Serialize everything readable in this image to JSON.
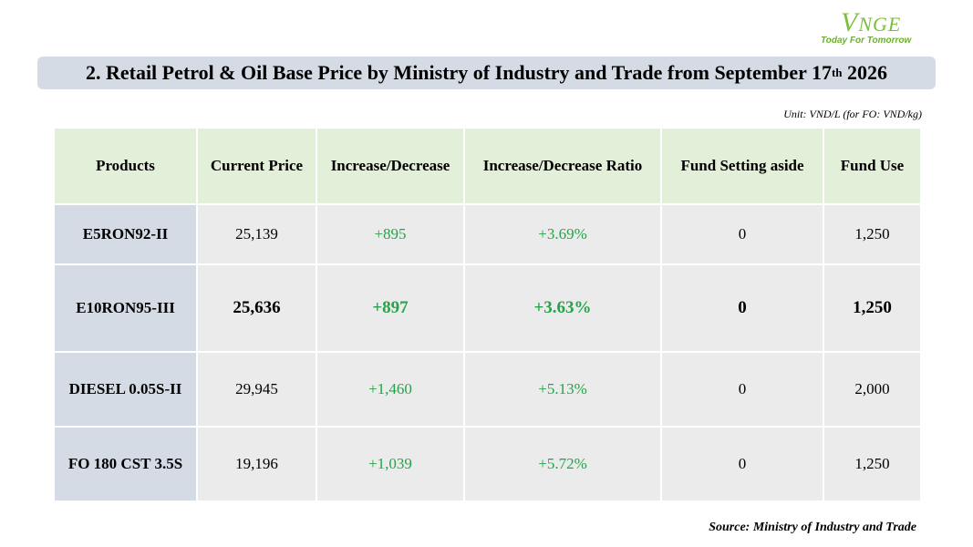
{
  "logo": {
    "brand_first": "V",
    "brand_rest": "NGE",
    "tagline": "Today For Tomorrow"
  },
  "title": {
    "main": "2. Retail Petrol & Oil Base Price by Ministry of Industry and Trade from September 17",
    "sup": "th",
    "year": " 2026"
  },
  "unit": "Unit: VND/L (for FO: VND/kg)",
  "table": {
    "headers": [
      "Products",
      "Current Price",
      "Increase/Decrease",
      "Increase/Decrease Ratio",
      "Fund Setting aside",
      "Fund Use"
    ],
    "rows": [
      {
        "product": "E5RON92-II",
        "price": "25,139",
        "change": "+895",
        "ratio": "+3.69%",
        "set_aside": "0",
        "fund_use": "1,250"
      },
      {
        "product": "E10RON95-III",
        "price": "25,636",
        "change": "+897",
        "ratio": "+3.63%",
        "set_aside": "0",
        "fund_use": "1,250"
      },
      {
        "product": "DIESEL 0.05S-II",
        "price": "29,945",
        "change": "+1,460",
        "ratio": "+5.13%",
        "set_aside": "0",
        "fund_use": "2,000"
      },
      {
        "product": "FO 180 CST 3.5S",
        "price": "19,196",
        "change": "+1,039",
        "ratio": "+5.72%",
        "set_aside": "0",
        "fund_use": "1,250"
      }
    ]
  },
  "source": "Source: Ministry of Industry and Trade",
  "colors": {
    "positive": "#27a24a",
    "header_bg": "#e2efd9",
    "product_bg": "#d5dbe5",
    "cell_bg": "#ebebeb",
    "logo": "#7cbf3a"
  }
}
